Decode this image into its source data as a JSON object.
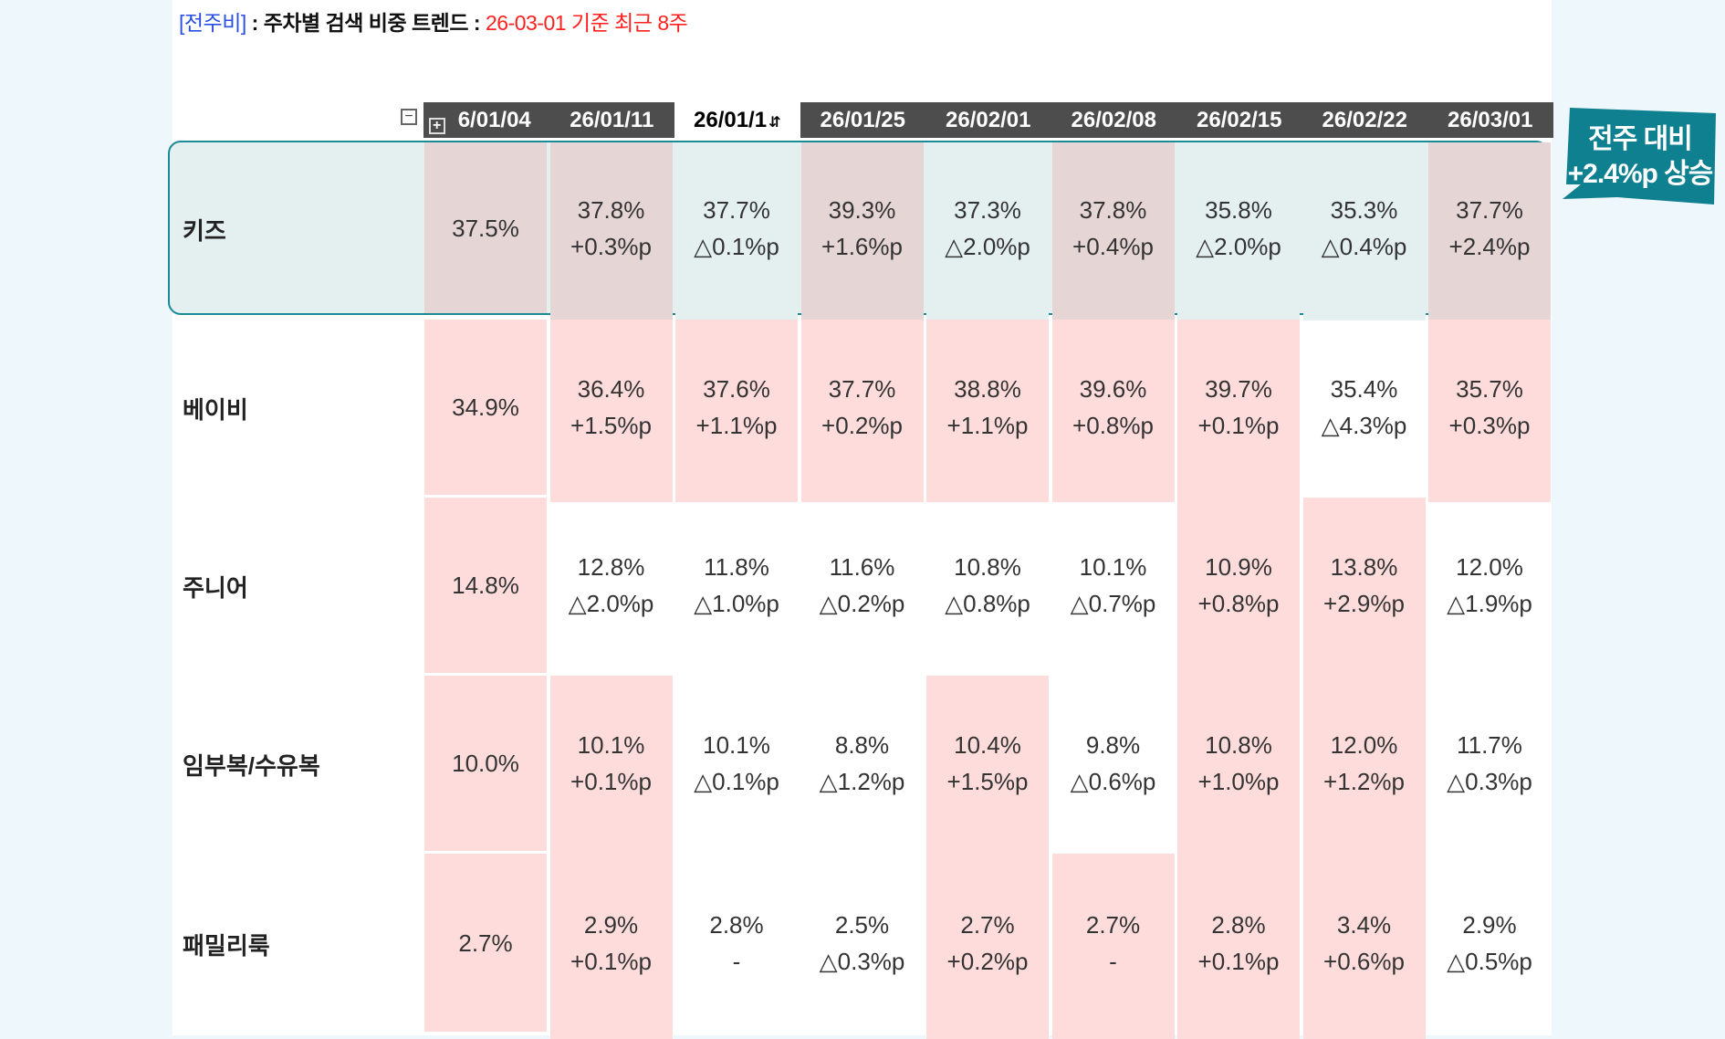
{
  "title": {
    "tag": "[전주비]",
    "sep": " : ",
    "main": "주차별 검색 비중 트렌드",
    "sep2": " : ",
    "sub": "26-03-01 기준 최근 8주"
  },
  "controls": {
    "collapse": "−",
    "expand": "+"
  },
  "headers": [
    {
      "label": "6/01/04",
      "active": false
    },
    {
      "label": "26/01/11",
      "active": false
    },
    {
      "label": "26/01/1",
      "active": true,
      "icon": "sort-icon"
    },
    {
      "label": "26/01/25",
      "active": false
    },
    {
      "label": "26/02/01",
      "active": false
    },
    {
      "label": "26/02/08",
      "active": false
    },
    {
      "label": "26/02/15",
      "active": false
    },
    {
      "label": "26/02/22",
      "active": false
    },
    {
      "label": "26/03/01",
      "active": false
    }
  ],
  "rows": [
    {
      "label": "키즈",
      "highlight": true,
      "cells": [
        [
          "37.5%",
          ""
        ],
        [
          "37.8%",
          "+0.3%p"
        ],
        [
          "37.7%",
          "△0.1%p"
        ],
        [
          "39.3%",
          "+1.6%p"
        ],
        [
          "37.3%",
          "△2.0%p"
        ],
        [
          "37.8%",
          "+0.4%p"
        ],
        [
          "35.8%",
          "△2.0%p"
        ],
        [
          "35.3%",
          "△0.4%p"
        ],
        [
          "37.7%",
          "+2.4%p"
        ]
      ],
      "pink": [
        1,
        1,
        0,
        1,
        0,
        1,
        0,
        0,
        1
      ]
    },
    {
      "label": "베이비",
      "highlight": false,
      "cells": [
        [
          "34.9%",
          ""
        ],
        [
          "36.4%",
          "+1.5%p"
        ],
        [
          "37.6%",
          "+1.1%p"
        ],
        [
          "37.7%",
          "+0.2%p"
        ],
        [
          "38.8%",
          "+1.1%p"
        ],
        [
          "39.6%",
          "+0.8%p"
        ],
        [
          "39.7%",
          "+0.1%p"
        ],
        [
          "35.4%",
          "△4.3%p"
        ],
        [
          "35.7%",
          "+0.3%p"
        ]
      ],
      "pink": [
        1,
        1,
        1,
        1,
        1,
        1,
        1,
        0,
        1
      ]
    },
    {
      "label": "주니어",
      "highlight": false,
      "cells": [
        [
          "14.8%",
          ""
        ],
        [
          "12.8%",
          "△2.0%p"
        ],
        [
          "11.8%",
          "△1.0%p"
        ],
        [
          "11.6%",
          "△0.2%p"
        ],
        [
          "10.8%",
          "△0.8%p"
        ],
        [
          "10.1%",
          "△0.7%p"
        ],
        [
          "10.9%",
          "+0.8%p"
        ],
        [
          "13.8%",
          "+2.9%p"
        ],
        [
          "12.0%",
          "△1.9%p"
        ]
      ],
      "pink": [
        1,
        0,
        0,
        0,
        0,
        0,
        1,
        1,
        0
      ]
    },
    {
      "label": "임부복/수유복",
      "highlight": false,
      "cells": [
        [
          "10.0%",
          ""
        ],
        [
          "10.1%",
          "+0.1%p"
        ],
        [
          "10.1%",
          "△0.1%p"
        ],
        [
          "8.8%",
          "△1.2%p"
        ],
        [
          "10.4%",
          "+1.5%p"
        ],
        [
          "9.8%",
          "△0.6%p"
        ],
        [
          "10.8%",
          "+1.0%p"
        ],
        [
          "12.0%",
          "+1.2%p"
        ],
        [
          "11.7%",
          "△0.3%p"
        ]
      ],
      "pink": [
        1,
        1,
        0,
        0,
        1,
        0,
        1,
        1,
        0
      ]
    },
    {
      "label": "패밀리룩",
      "highlight": false,
      "cells": [
        [
          "2.7%",
          ""
        ],
        [
          "2.9%",
          "+0.1%p"
        ],
        [
          "2.8%",
          "-"
        ],
        [
          "2.5%",
          "△0.3%p"
        ],
        [
          "2.7%",
          "+0.2%p"
        ],
        [
          "2.7%",
          "-"
        ],
        [
          "2.8%",
          "+0.1%p"
        ],
        [
          "3.4%",
          "+0.6%p"
        ],
        [
          "2.9%",
          "△0.5%p"
        ]
      ],
      "pink": [
        1,
        1,
        0,
        0,
        1,
        1,
        1,
        1,
        0
      ]
    }
  ],
  "callout": {
    "line1": "전주 대비",
    "line2": "+2.4%p 상승"
  },
  "colors": {
    "header": "#4d4d4d",
    "pink": "#ffdcdc",
    "highlight_border": "#1a8a96",
    "callout": "#0e8090",
    "title_tag": "#2b4fe0",
    "title_sub": "#ff2020"
  }
}
